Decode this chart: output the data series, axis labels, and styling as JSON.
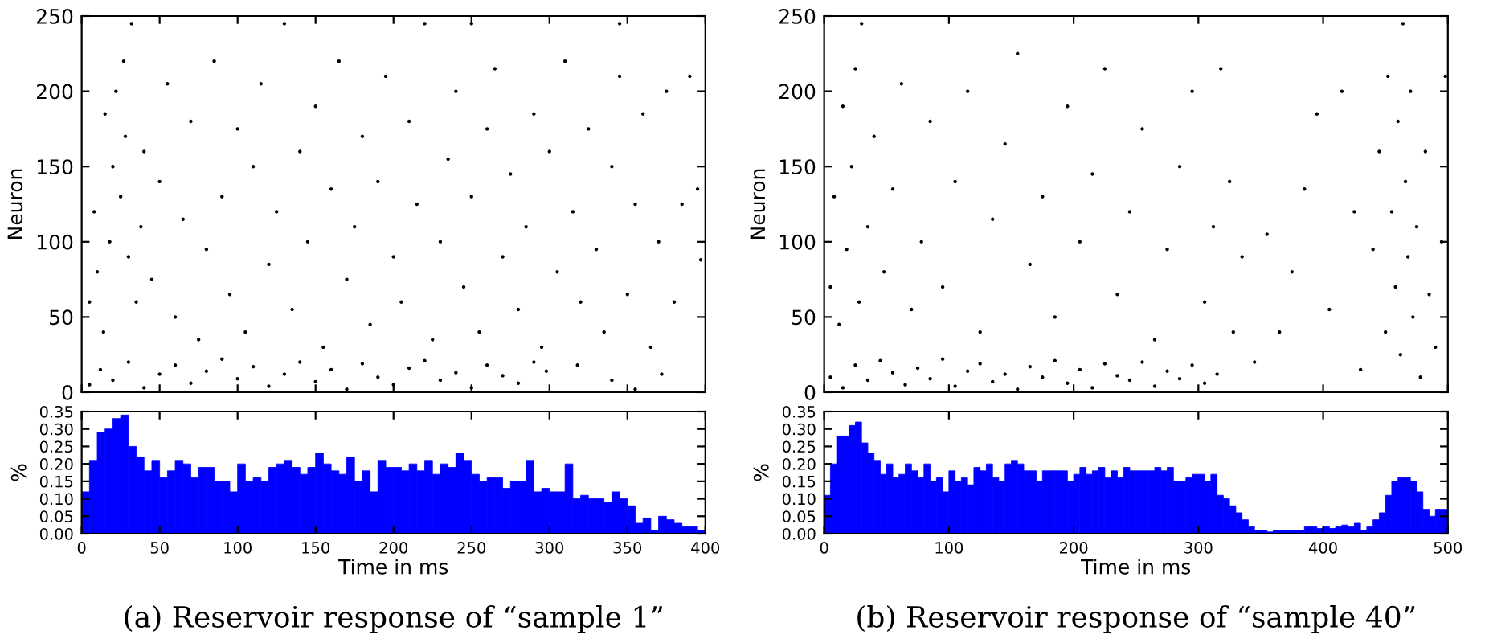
{
  "chart_data": [
    {
      "type": "scatter",
      "ylabel": "Neuron",
      "xlim": [
        0,
        400
      ],
      "ylim": [
        0,
        250
      ],
      "xticks": [
        0,
        50,
        100,
        150,
        200,
        250,
        300,
        350,
        400
      ],
      "yticks": [
        0,
        50,
        100,
        150,
        200,
        250
      ],
      "tick_labels": "y",
      "marker": "circle",
      "grid": false,
      "legend": false,
      "series": [
        {
          "color": "#000000",
          "x": [
            5,
            12,
            20,
            30,
            40,
            50,
            60,
            70,
            80,
            90,
            100,
            110,
            120,
            130,
            140,
            150,
            160,
            170,
            180,
            190,
            200,
            210,
            220,
            230,
            240,
            250,
            260,
            270,
            280,
            290,
            298,
            5,
            8,
            10,
            14,
            15,
            18,
            20,
            22,
            25,
            27,
            28,
            30,
            32,
            35,
            38,
            40,
            45,
            50,
            55,
            60,
            65,
            70,
            75,
            80,
            85,
            90,
            95,
            100,
            105,
            110,
            115,
            120,
            125,
            130,
            135,
            140,
            145,
            150,
            155,
            160,
            165,
            170,
            175,
            180,
            185,
            190,
            195,
            200,
            205,
            210,
            215,
            220,
            225,
            230,
            235,
            240,
            245,
            250,
            255,
            260,
            265,
            270,
            275,
            280,
            285,
            290,
            295,
            300,
            305,
            310,
            315,
            320,
            325,
            330,
            335,
            340,
            345,
            350,
            355,
            360,
            365,
            370,
            375,
            380,
            385,
            390,
            395,
            397,
            372,
            340,
            355,
            318,
            345,
            250
          ],
          "values": [
            5,
            15,
            8,
            20,
            3,
            12,
            18,
            6,
            14,
            22,
            9,
            17,
            4,
            12,
            20,
            7,
            15,
            2,
            19,
            10,
            5,
            16,
            21,
            8,
            13,
            3,
            18,
            11,
            6,
            20,
            14,
            60,
            120,
            80,
            40,
            185,
            100,
            150,
            200,
            130,
            220,
            170,
            90,
            245,
            60,
            110,
            160,
            75,
            140,
            205,
            50,
            115,
            180,
            35,
            95,
            220,
            130,
            65,
            175,
            40,
            150,
            205,
            85,
            120,
            245,
            55,
            160,
            100,
            190,
            30,
            135,
            220,
            75,
            110,
            170,
            45,
            140,
            210,
            90,
            60,
            180,
            125,
            245,
            35,
            100,
            155,
            200,
            70,
            130,
            40,
            175,
            215,
            90,
            145,
            55,
            110,
            185,
            30,
            160,
            80,
            220,
            120,
            60,
            175,
            95,
            40,
            150,
            210,
            65,
            125,
            185,
            30,
            100,
            200,
            60,
            125,
            210,
            135,
            88,
            12,
            8,
            2,
            18,
            245,
            245
          ]
        }
      ]
    },
    {
      "type": "histogram",
      "xlabel": "Time in ms",
      "ylabel": "%",
      "xlim": [
        0,
        400
      ],
      "ylim": [
        0,
        0.35
      ],
      "xticks": [
        0,
        50,
        100,
        150,
        200,
        250,
        300,
        350,
        400
      ],
      "yticks": [
        {
          "value": 0,
          "label": "0.00"
        },
        {
          "value": 0.05,
          "label": "0.05"
        },
        {
          "value": 0.1,
          "label": "0.10"
        },
        {
          "value": 0.15,
          "label": "0.15"
        },
        {
          "value": 0.2,
          "label": "0.20"
        },
        {
          "value": 0.25,
          "label": "0.25"
        },
        {
          "value": 0.3,
          "label": "0.30"
        },
        {
          "value": 0.35,
          "label": "0.35"
        }
      ],
      "grid": false,
      "color": "#0000ff",
      "annotations": [
        "(a) Reservoir response of “sample 1”"
      ],
      "bins": [
        0,
        5,
        10,
        15,
        20,
        25,
        30,
        35,
        40,
        45,
        50,
        55,
        60,
        65,
        70,
        75,
        80,
        85,
        90,
        95,
        100,
        105,
        110,
        115,
        120,
        125,
        130,
        135,
        140,
        145,
        150,
        155,
        160,
        165,
        170,
        175,
        180,
        185,
        190,
        195,
        200,
        205,
        210,
        215,
        220,
        225,
        230,
        235,
        240,
        245,
        250,
        255,
        260,
        265,
        270,
        275,
        280,
        285,
        290,
        295,
        300,
        305,
        310,
        315,
        320,
        325,
        330,
        335,
        340,
        345,
        350,
        355,
        360,
        365,
        370,
        375,
        380,
        385,
        390,
        395,
        400
      ],
      "values": [
        0.12,
        0.21,
        0.29,
        0.3,
        0.33,
        0.34,
        0.25,
        0.22,
        0.18,
        0.21,
        0.16,
        0.18,
        0.21,
        0.2,
        0.16,
        0.19,
        0.19,
        0.15,
        0.15,
        0.12,
        0.2,
        0.15,
        0.16,
        0.15,
        0.19,
        0.2,
        0.21,
        0.19,
        0.17,
        0.19,
        0.23,
        0.2,
        0.18,
        0.17,
        0.22,
        0.15,
        0.18,
        0.12,
        0.21,
        0.19,
        0.19,
        0.18,
        0.2,
        0.18,
        0.21,
        0.17,
        0.2,
        0.19,
        0.23,
        0.21,
        0.17,
        0.15,
        0.16,
        0.16,
        0.13,
        0.15,
        0.15,
        0.21,
        0.12,
        0.13,
        0.12,
        0.12,
        0.2,
        0.1,
        0.11,
        0.1,
        0.1,
        0.09,
        0.12,
        0.1,
        0.08,
        0.03,
        0.045,
        0.01,
        0.05,
        0.04,
        0.03,
        0.02,
        0.02,
        0.01
      ]
    },
    {
      "type": "scatter",
      "ylabel": "Neuron",
      "xlim": [
        0,
        500
      ],
      "ylim": [
        0,
        250
      ],
      "xticks": [
        0,
        100,
        200,
        300,
        400,
        500
      ],
      "yticks": [
        0,
        50,
        100,
        150,
        200,
        250
      ],
      "tick_labels": "y",
      "marker": "circle",
      "grid": false,
      "legend": false,
      "series": [
        {
          "color": "#000000",
          "x": [
            5,
            15,
            25,
            35,
            45,
            55,
            65,
            75,
            85,
            95,
            105,
            115,
            125,
            135,
            145,
            155,
            165,
            175,
            185,
            195,
            205,
            215,
            225,
            235,
            245,
            255,
            265,
            275,
            285,
            295,
            305,
            315,
            5,
            8,
            12,
            15,
            18,
            22,
            25,
            28,
            30,
            35,
            40,
            48,
            55,
            62,
            70,
            78,
            85,
            95,
            105,
            115,
            125,
            135,
            145,
            155,
            165,
            175,
            185,
            195,
            205,
            215,
            225,
            235,
            245,
            255,
            265,
            275,
            285,
            295,
            305,
            312,
            318,
            325,
            328,
            335,
            345,
            355,
            365,
            375,
            385,
            395,
            405,
            415,
            425,
            430,
            440,
            445,
            450,
            452,
            455,
            458,
            460,
            462,
            464,
            466,
            468,
            470,
            472,
            475,
            478,
            482,
            485,
            490,
            495,
            498
          ],
          "values": [
            10,
            3,
            18,
            8,
            21,
            13,
            5,
            16,
            9,
            22,
            4,
            14,
            19,
            7,
            12,
            2,
            17,
            10,
            21,
            6,
            15,
            3,
            19,
            11,
            8,
            20,
            4,
            14,
            9,
            18,
            6,
            12,
            70,
            130,
            45,
            190,
            95,
            150,
            215,
            60,
            245,
            110,
            170,
            80,
            135,
            205,
            55,
            100,
            180,
            70,
            140,
            200,
            40,
            115,
            165,
            225,
            85,
            130,
            50,
            190,
            100,
            145,
            215,
            65,
            120,
            175,
            35,
            95,
            150,
            200,
            60,
            110,
            215,
            140,
            40,
            90,
            20,
            105,
            40,
            80,
            135,
            185,
            55,
            200,
            120,
            15,
            95,
            160,
            40,
            210,
            120,
            70,
            180,
            25,
            245,
            140,
            90,
            200,
            50,
            110,
            10,
            160,
            65,
            30,
            100,
            210
          ]
        }
      ]
    },
    {
      "type": "histogram",
      "xlabel": "Time in ms",
      "ylabel": "%",
      "xlim": [
        0,
        500
      ],
      "ylim": [
        0,
        0.35
      ],
      "xticks": [
        0,
        100,
        200,
        300,
        400,
        500
      ],
      "yticks": [
        {
          "value": 0,
          "label": "0.00"
        },
        {
          "value": 0.05,
          "label": "0.05"
        },
        {
          "value": 0.1,
          "label": "0.10"
        },
        {
          "value": 0.15,
          "label": "0.15"
        },
        {
          "value": 0.2,
          "label": "0.20"
        },
        {
          "value": 0.25,
          "label": "0.25"
        },
        {
          "value": 0.3,
          "label": "0.30"
        },
        {
          "value": 0.35,
          "label": "0.35"
        }
      ],
      "grid": false,
      "color": "#0000ff",
      "annotations": [
        "(b) Reservoir response of “sample 40”"
      ],
      "bins": [
        0,
        5,
        10,
        15,
        20,
        25,
        30,
        35,
        40,
        45,
        50,
        55,
        60,
        65,
        70,
        75,
        80,
        85,
        90,
        95,
        100,
        105,
        110,
        115,
        120,
        125,
        130,
        135,
        140,
        145,
        150,
        155,
        160,
        165,
        170,
        175,
        180,
        185,
        190,
        195,
        200,
        205,
        210,
        215,
        220,
        225,
        230,
        235,
        240,
        245,
        250,
        255,
        260,
        265,
        270,
        275,
        280,
        285,
        290,
        295,
        300,
        305,
        310,
        315,
        320,
        325,
        330,
        335,
        340,
        345,
        350,
        355,
        360,
        365,
        370,
        375,
        380,
        385,
        390,
        395,
        400,
        405,
        410,
        415,
        420,
        425,
        430,
        435,
        440,
        445,
        450,
        455,
        460,
        465,
        470,
        475,
        480,
        485,
        490,
        495,
        500
      ],
      "values": [
        0.11,
        0.2,
        0.28,
        0.28,
        0.31,
        0.32,
        0.26,
        0.23,
        0.21,
        0.17,
        0.2,
        0.16,
        0.17,
        0.2,
        0.18,
        0.16,
        0.2,
        0.15,
        0.16,
        0.12,
        0.18,
        0.15,
        0.16,
        0.14,
        0.19,
        0.18,
        0.2,
        0.16,
        0.15,
        0.2,
        0.21,
        0.2,
        0.18,
        0.18,
        0.15,
        0.18,
        0.18,
        0.18,
        0.18,
        0.15,
        0.17,
        0.19,
        0.17,
        0.18,
        0.19,
        0.16,
        0.18,
        0.16,
        0.19,
        0.18,
        0.18,
        0.18,
        0.18,
        0.19,
        0.18,
        0.19,
        0.15,
        0.15,
        0.16,
        0.17,
        0.17,
        0.15,
        0.17,
        0.11,
        0.1,
        0.08,
        0.06,
        0.04,
        0.02,
        0.01,
        0.01,
        0.005,
        0.01,
        0.01,
        0.01,
        0.01,
        0.01,
        0.02,
        0.02,
        0.015,
        0.02,
        0.015,
        0.02,
        0.025,
        0.02,
        0.03,
        0.01,
        0.02,
        0.04,
        0.06,
        0.11,
        0.15,
        0.16,
        0.16,
        0.15,
        0.12,
        0.07,
        0.05,
        0.07,
        0.07
      ]
    }
  ]
}
